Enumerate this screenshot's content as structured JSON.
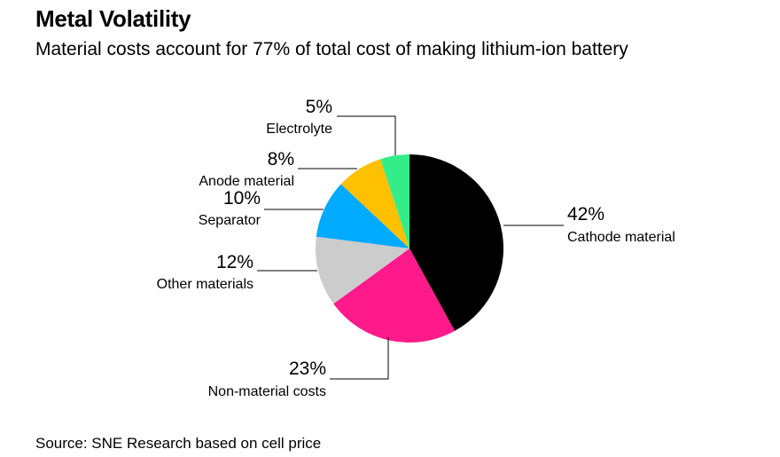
{
  "title": "Metal Volatility",
  "subtitle": "Material costs account for 77% of total cost of making lithium-ion battery",
  "source": "Source: SNE Research based on cell price",
  "chart_data": {
    "type": "pie",
    "slices": [
      {
        "name": "Cathode material",
        "value": 42,
        "pct_label": "42%",
        "color": "#000000"
      },
      {
        "name": "Non-material costs",
        "value": 23,
        "pct_label": "23%",
        "color": "#ff1a8c"
      },
      {
        "name": "Other materials",
        "value": 12,
        "pct_label": "12%",
        "color": "#cccccc"
      },
      {
        "name": "Separator",
        "value": 10,
        "pct_label": "10%",
        "color": "#00aaff"
      },
      {
        "name": "Anode material",
        "value": 8,
        "pct_label": "8%",
        "color": "#ffc000"
      },
      {
        "name": "Electrolyte",
        "value": 5,
        "pct_label": "5%",
        "color": "#33ee88"
      }
    ]
  }
}
